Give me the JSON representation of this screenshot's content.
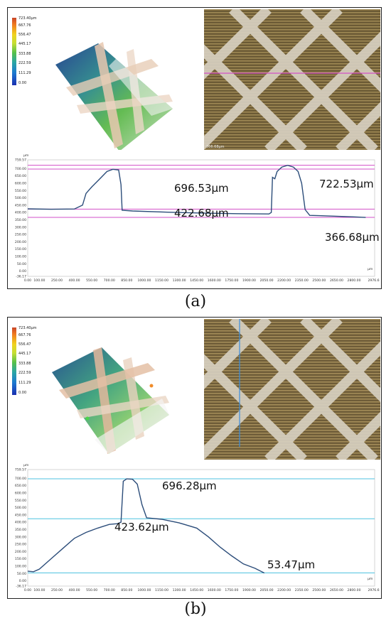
{
  "figure": {
    "panels": [
      {
        "id": "a",
        "caption": "(a)",
        "colorbar": [
          "723.40μm",
          "667.76",
          "556.47",
          "445.17",
          "333.88",
          "222.59",
          "111.29",
          "0.00"
        ],
        "scale_text": "366.68μm",
        "profile": {
          "y_unit": "μm",
          "x_unit": "μm",
          "y_ticks": [
            "759.57",
            "700.00",
            "650.00",
            "600.00",
            "550.00",
            "500.00",
            "450.00",
            "400.00",
            "350.00",
            "300.00",
            "250.00",
            "200.00",
            "150.00",
            "100.00",
            "50.00",
            "0.00",
            "-36.17"
          ],
          "x_ticks": [
            "0.00",
            "100.00",
            "250.00",
            "400.00",
            "550.00",
            "700.00",
            "850.00",
            "1000.00",
            "1150.00",
            "1300.00",
            "1450.00",
            "1600.00",
            "1750.00",
            "1900.00",
            "2050.00",
            "2200.00",
            "2350.00",
            "2500.00",
            "2650.00",
            "2800.00",
            "2976.69"
          ],
          "annotations": [
            "696.53μm",
            "722.53μm",
            "422.68μm",
            "366.68μm"
          ],
          "reference_lines": [
            722.53,
            696.53,
            422.68,
            366.68
          ],
          "reference_color": "#d24fc8",
          "curve_color": "#2c4d7a",
          "curve": [
            [
              0,
              425
            ],
            [
              200,
              422
            ],
            [
              400,
              424
            ],
            [
              470,
              450
            ],
            [
              500,
              530
            ],
            [
              550,
              575
            ],
            [
              600,
              615
            ],
            [
              680,
              680
            ],
            [
              730,
              695
            ],
            [
              780,
              690
            ],
            [
              800,
              590
            ],
            [
              810,
              415
            ],
            [
              900,
              410
            ],
            [
              1200,
              402
            ],
            [
              1500,
              396
            ],
            [
              1800,
              392
            ],
            [
              2070,
              390
            ],
            [
              2090,
              400
            ],
            [
              2100,
              640
            ],
            [
              2120,
              630
            ],
            [
              2140,
              680
            ],
            [
              2180,
              710
            ],
            [
              2230,
              722
            ],
            [
              2280,
              710
            ],
            [
              2320,
              680
            ],
            [
              2350,
              600
            ],
            [
              2380,
              420
            ],
            [
              2420,
              380
            ],
            [
              2500,
              378
            ],
            [
              2800,
              370
            ],
            [
              2900,
              366
            ]
          ]
        }
      },
      {
        "id": "b",
        "caption": "(b)",
        "colorbar": [
          "723.40μm",
          "667.76",
          "556.47",
          "445.17",
          "333.88",
          "222.59",
          "111.29",
          "0.00"
        ],
        "profile": {
          "y_unit": "μm",
          "x_unit": "μm",
          "y_ticks": [
            "759.57",
            "700.00",
            "650.00",
            "600.00",
            "550.00",
            "500.00",
            "450.00",
            "400.00",
            "350.00",
            "300.00",
            "250.00",
            "200.00",
            "150.00",
            "100.00",
            "50.00",
            "0.00",
            "-36.17"
          ],
          "x_ticks": [
            "0.00",
            "100.00",
            "250.00",
            "400.00",
            "550.00",
            "700.00",
            "850.00",
            "1000.00",
            "1150.00",
            "1300.00",
            "1450.00",
            "1600.00",
            "1750.00",
            "1900.00",
            "2050.00",
            "2200.00",
            "2350.00",
            "2500.00",
            "2650.00",
            "2800.00",
            "2976.69"
          ],
          "annotations": [
            "696.28μm",
            "423.62μm",
            "53.47μm"
          ],
          "reference_lines": [
            696.28,
            423.62,
            53.47
          ],
          "reference_color": "#4fc3e0",
          "curve_color": "#2c4d7a",
          "curve": [
            [
              0,
              65
            ],
            [
              50,
              62
            ],
            [
              100,
              80
            ],
            [
              200,
              150
            ],
            [
              300,
              220
            ],
            [
              400,
              290
            ],
            [
              500,
              330
            ],
            [
              600,
              360
            ],
            [
              700,
              385
            ],
            [
              770,
              390
            ],
            [
              800,
              400
            ],
            [
              820,
              680
            ],
            [
              850,
              696
            ],
            [
              900,
              693
            ],
            [
              940,
              660
            ],
            [
              980,
              520
            ],
            [
              1020,
              430
            ],
            [
              1150,
              420
            ],
            [
              1300,
              395
            ],
            [
              1450,
              360
            ],
            [
              1550,
              300
            ],
            [
              1650,
              230
            ],
            [
              1750,
              170
            ],
            [
              1850,
              115
            ],
            [
              1950,
              85
            ],
            [
              2030,
              53
            ]
          ]
        }
      }
    ]
  }
}
